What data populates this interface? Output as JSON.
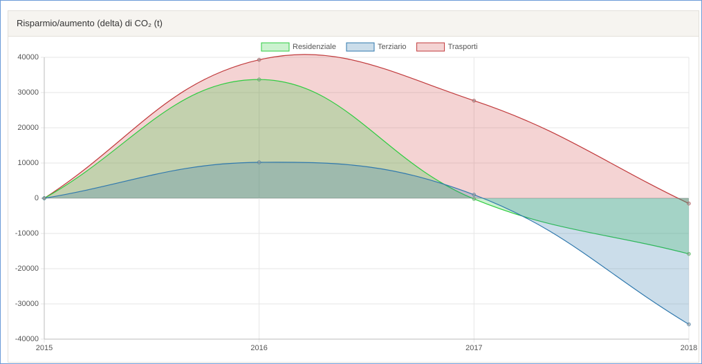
{
  "chart_data": {
    "type": "line",
    "title": "Risparmio/aumento (delta) di CO₂ (t)",
    "categories": [
      "2015",
      "2016",
      "2017",
      "2018"
    ],
    "series": [
      {
        "name": "Residenziale",
        "color": "#2ecc40",
        "fill": "rgba(46,204,64,0.25)",
        "values": [
          0,
          33700,
          -200,
          -15800
        ]
      },
      {
        "name": "Terziario",
        "color": "#2f78ad",
        "fill": "rgba(47,120,173,0.25)",
        "values": [
          0,
          10200,
          1000,
          -35800
        ]
      },
      {
        "name": "Trasporti",
        "color": "#c0393b",
        "fill": "rgba(210,80,80,0.25)",
        "values": [
          0,
          39300,
          27700,
          -1500
        ]
      }
    ],
    "ylim": [
      -40000,
      40000
    ],
    "yticks": [
      -40000,
      -30000,
      -20000,
      -10000,
      0,
      10000,
      20000,
      30000,
      40000
    ],
    "grid": true,
    "legend": "top"
  }
}
